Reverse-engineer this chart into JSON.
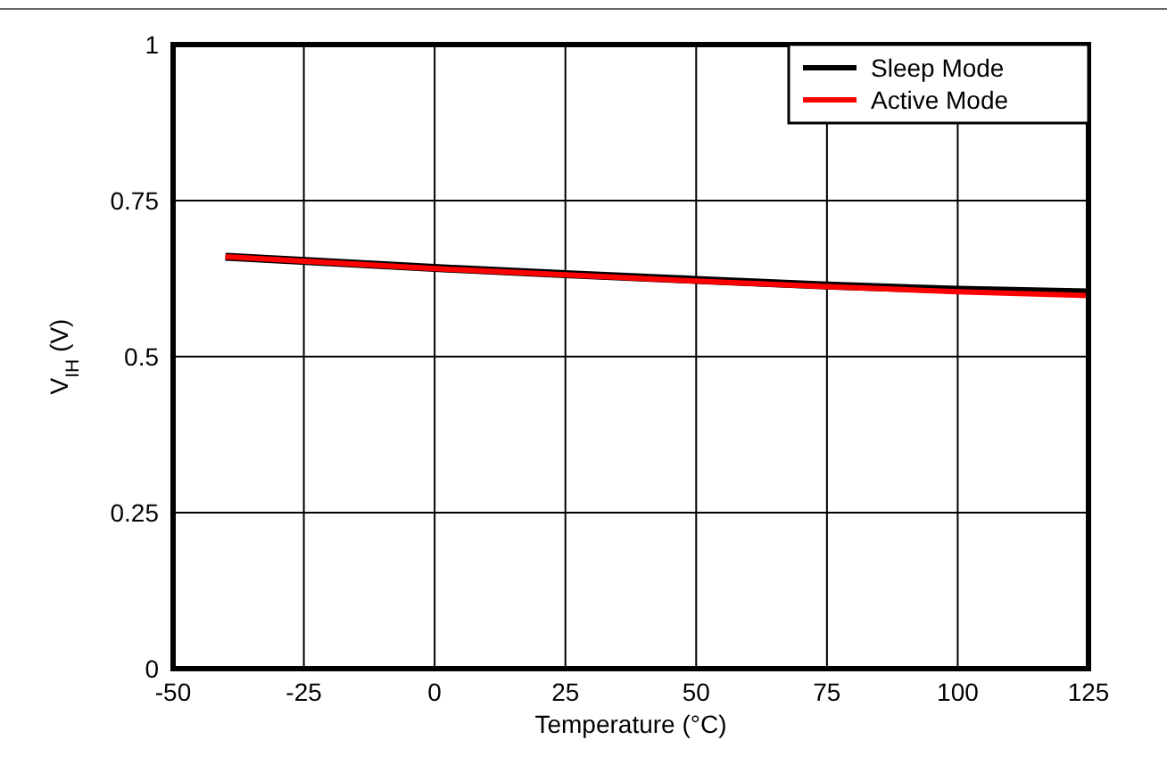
{
  "chart_data": {
    "type": "line",
    "xlabel": "Temperature (°C)",
    "ylabel": "V$_{IH}$ (V)",
    "x": [
      -40,
      0,
      25,
      50,
      75,
      100,
      125
    ],
    "series": [
      {
        "name": "Sleep Mode",
        "color": "#000000",
        "values": [
          0.66,
          0.642,
          0.632,
          0.623,
          0.614,
          0.607,
          0.603
        ]
      },
      {
        "name": "Active Mode",
        "color": "#ff0000",
        "values": [
          0.66,
          0.641,
          0.631,
          0.621,
          0.612,
          0.604,
          0.598
        ]
      }
    ],
    "xlim": [
      -50,
      125
    ],
    "xticks": [
      -50,
      -25,
      0,
      25,
      50,
      75,
      100,
      125
    ],
    "ylim": [
      0,
      1
    ],
    "yticks": [
      0,
      {
        "value": 0.25,
        "label": "0.25"
      },
      {
        "value": 0.5,
        "label": "0.5"
      },
      {
        "value": 0.75,
        "label": "0.75"
      },
      1
    ],
    "grid": true,
    "legend": "top right",
    "marker": "none",
    "line_style": "solid"
  }
}
